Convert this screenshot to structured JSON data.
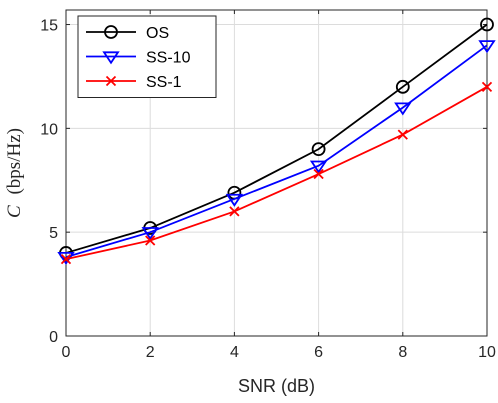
{
  "chart_data": {
    "type": "line",
    "x": [
      0,
      2,
      4,
      6,
      8,
      10
    ],
    "series": [
      {
        "name": "OS",
        "values": [
          4.0,
          5.2,
          6.9,
          9.0,
          12.0,
          15.0
        ],
        "color": "#000000",
        "marker": "circle"
      },
      {
        "name": "SS-10",
        "values": [
          3.8,
          5.0,
          6.6,
          8.2,
          11.0,
          14.0
        ],
        "color": "#0000ff",
        "marker": "triangle-down"
      },
      {
        "name": "SS-1",
        "values": [
          3.7,
          4.6,
          6.0,
          7.8,
          9.7,
          12.0
        ],
        "color": "#ff0000",
        "marker": "x"
      }
    ],
    "xlabel": "SNR (dB)",
    "ylabel_symbol": "C",
    "ylabel_unit": "(bps/Hz)",
    "xlim": [
      0,
      10
    ],
    "ylim": [
      0,
      15.7
    ],
    "xticks": [
      "0",
      "2",
      "4",
      "6",
      "8",
      "10"
    ],
    "yticks": [
      "0",
      "5",
      "10",
      "15"
    ],
    "grid": true,
    "legend_position": "top-left"
  }
}
